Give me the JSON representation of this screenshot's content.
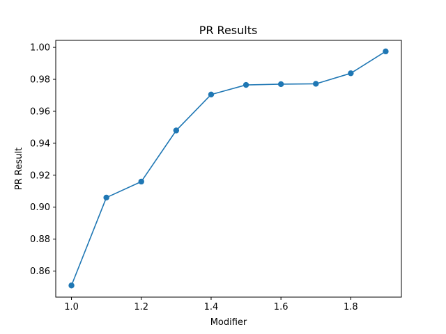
{
  "chart_data": {
    "type": "line",
    "title": "PR Results",
    "xlabel": "Modifier",
    "ylabel": "PR Result",
    "xlim": [
      0.955,
      1.945
    ],
    "ylim": [
      0.8437,
      1.0044
    ],
    "xticks": [
      1.0,
      1.2,
      1.4,
      1.6,
      1.8
    ],
    "xtick_labels": [
      "1.0",
      "1.2",
      "1.4",
      "1.6",
      "1.8"
    ],
    "yticks": [
      0.86,
      0.88,
      0.9,
      0.92,
      0.94,
      0.96,
      0.98,
      1.0
    ],
    "ytick_labels": [
      "0.86",
      "0.88",
      "0.90",
      "0.92",
      "0.94",
      "0.96",
      "0.98",
      "1.00"
    ],
    "grid": false,
    "series": [
      {
        "name": "PR Result",
        "color": "#1f77b4",
        "marker": "circle",
        "x": [
          1.0,
          1.1,
          1.2,
          1.3,
          1.4,
          1.5,
          1.6,
          1.7,
          1.8,
          1.9
        ],
        "y": [
          0.851,
          0.906,
          0.916,
          0.948,
          0.9705,
          0.9765,
          0.977,
          0.9772,
          0.9838,
          0.9975
        ]
      }
    ]
  }
}
